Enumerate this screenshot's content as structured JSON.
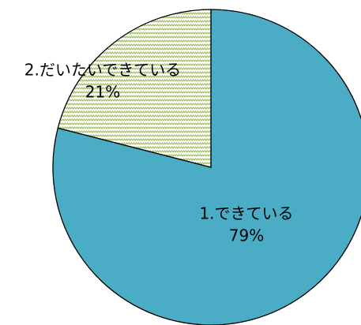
{
  "chart_data": {
    "type": "pie",
    "categories": [
      "1.できている",
      "2.だいたいできている"
    ],
    "values": [
      79,
      21
    ],
    "value_labels": [
      "79%",
      "21%"
    ],
    "colors": [
      "#4bacc6",
      "#9bbb59"
    ]
  }
}
